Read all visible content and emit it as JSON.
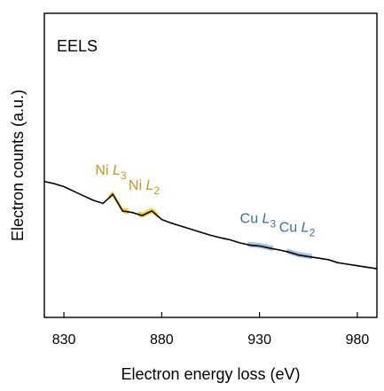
{
  "chart_data": {
    "type": "line",
    "title": "EELS",
    "xlabel": "Electron energy loss (eV)",
    "ylabel": "Electron counts (a.u.)",
    "xlim": [
      820,
      990
    ],
    "ylim": [
      0,
      1
    ],
    "xticks": [
      830,
      880,
      930,
      980
    ],
    "xtick_labels": [
      "830",
      "880",
      "930",
      "980"
    ],
    "grid": false,
    "series": [
      {
        "color": "#000000",
        "x": [
          820,
          825,
          830,
          835,
          840,
          845,
          850,
          855,
          860,
          865,
          870,
          875,
          880,
          885,
          890,
          895,
          900,
          905,
          910,
          915,
          920,
          925,
          930,
          935,
          940,
          945,
          950,
          955,
          960,
          965,
          970,
          975,
          980,
          985,
          990
        ],
        "y": [
          0.447,
          0.44,
          0.43,
          0.415,
          0.4,
          0.385,
          0.375,
          0.405,
          0.35,
          0.345,
          0.335,
          0.35,
          0.322,
          0.31,
          0.3,
          0.29,
          0.28,
          0.27,
          0.262,
          0.255,
          0.245,
          0.238,
          0.235,
          0.228,
          0.222,
          0.215,
          0.205,
          0.2,
          0.195,
          0.19,
          0.18,
          0.175,
          0.17,
          0.165,
          0.16
        ]
      }
    ],
    "annotations": [
      {
        "label_prefix": "Ni ",
        "label_main": "L",
        "label_sub": "3",
        "edge_x": 856,
        "edge_range": [
          853,
          863
        ],
        "color": "#c8961e",
        "fill": "#f5c518"
      },
      {
        "label_prefix": "Ni ",
        "label_main": "L",
        "label_sub": "2",
        "edge_x": 873,
        "edge_range": [
          868,
          878
        ],
        "color": "#c8961e",
        "fill": "#f5c518"
      },
      {
        "label_prefix": "Cu ",
        "label_main": "L",
        "label_sub": "3",
        "edge_x": 930,
        "edge_range": [
          924,
          937
        ],
        "color": "#3a6fb0",
        "fill": "#9dbfe0"
      },
      {
        "label_prefix": "Cu ",
        "label_main": "L",
        "label_sub": "2",
        "edge_x": 950,
        "edge_range": [
          944,
          957
        ],
        "color": "#3a6fb0",
        "fill": "#9dbfe0"
      }
    ]
  }
}
